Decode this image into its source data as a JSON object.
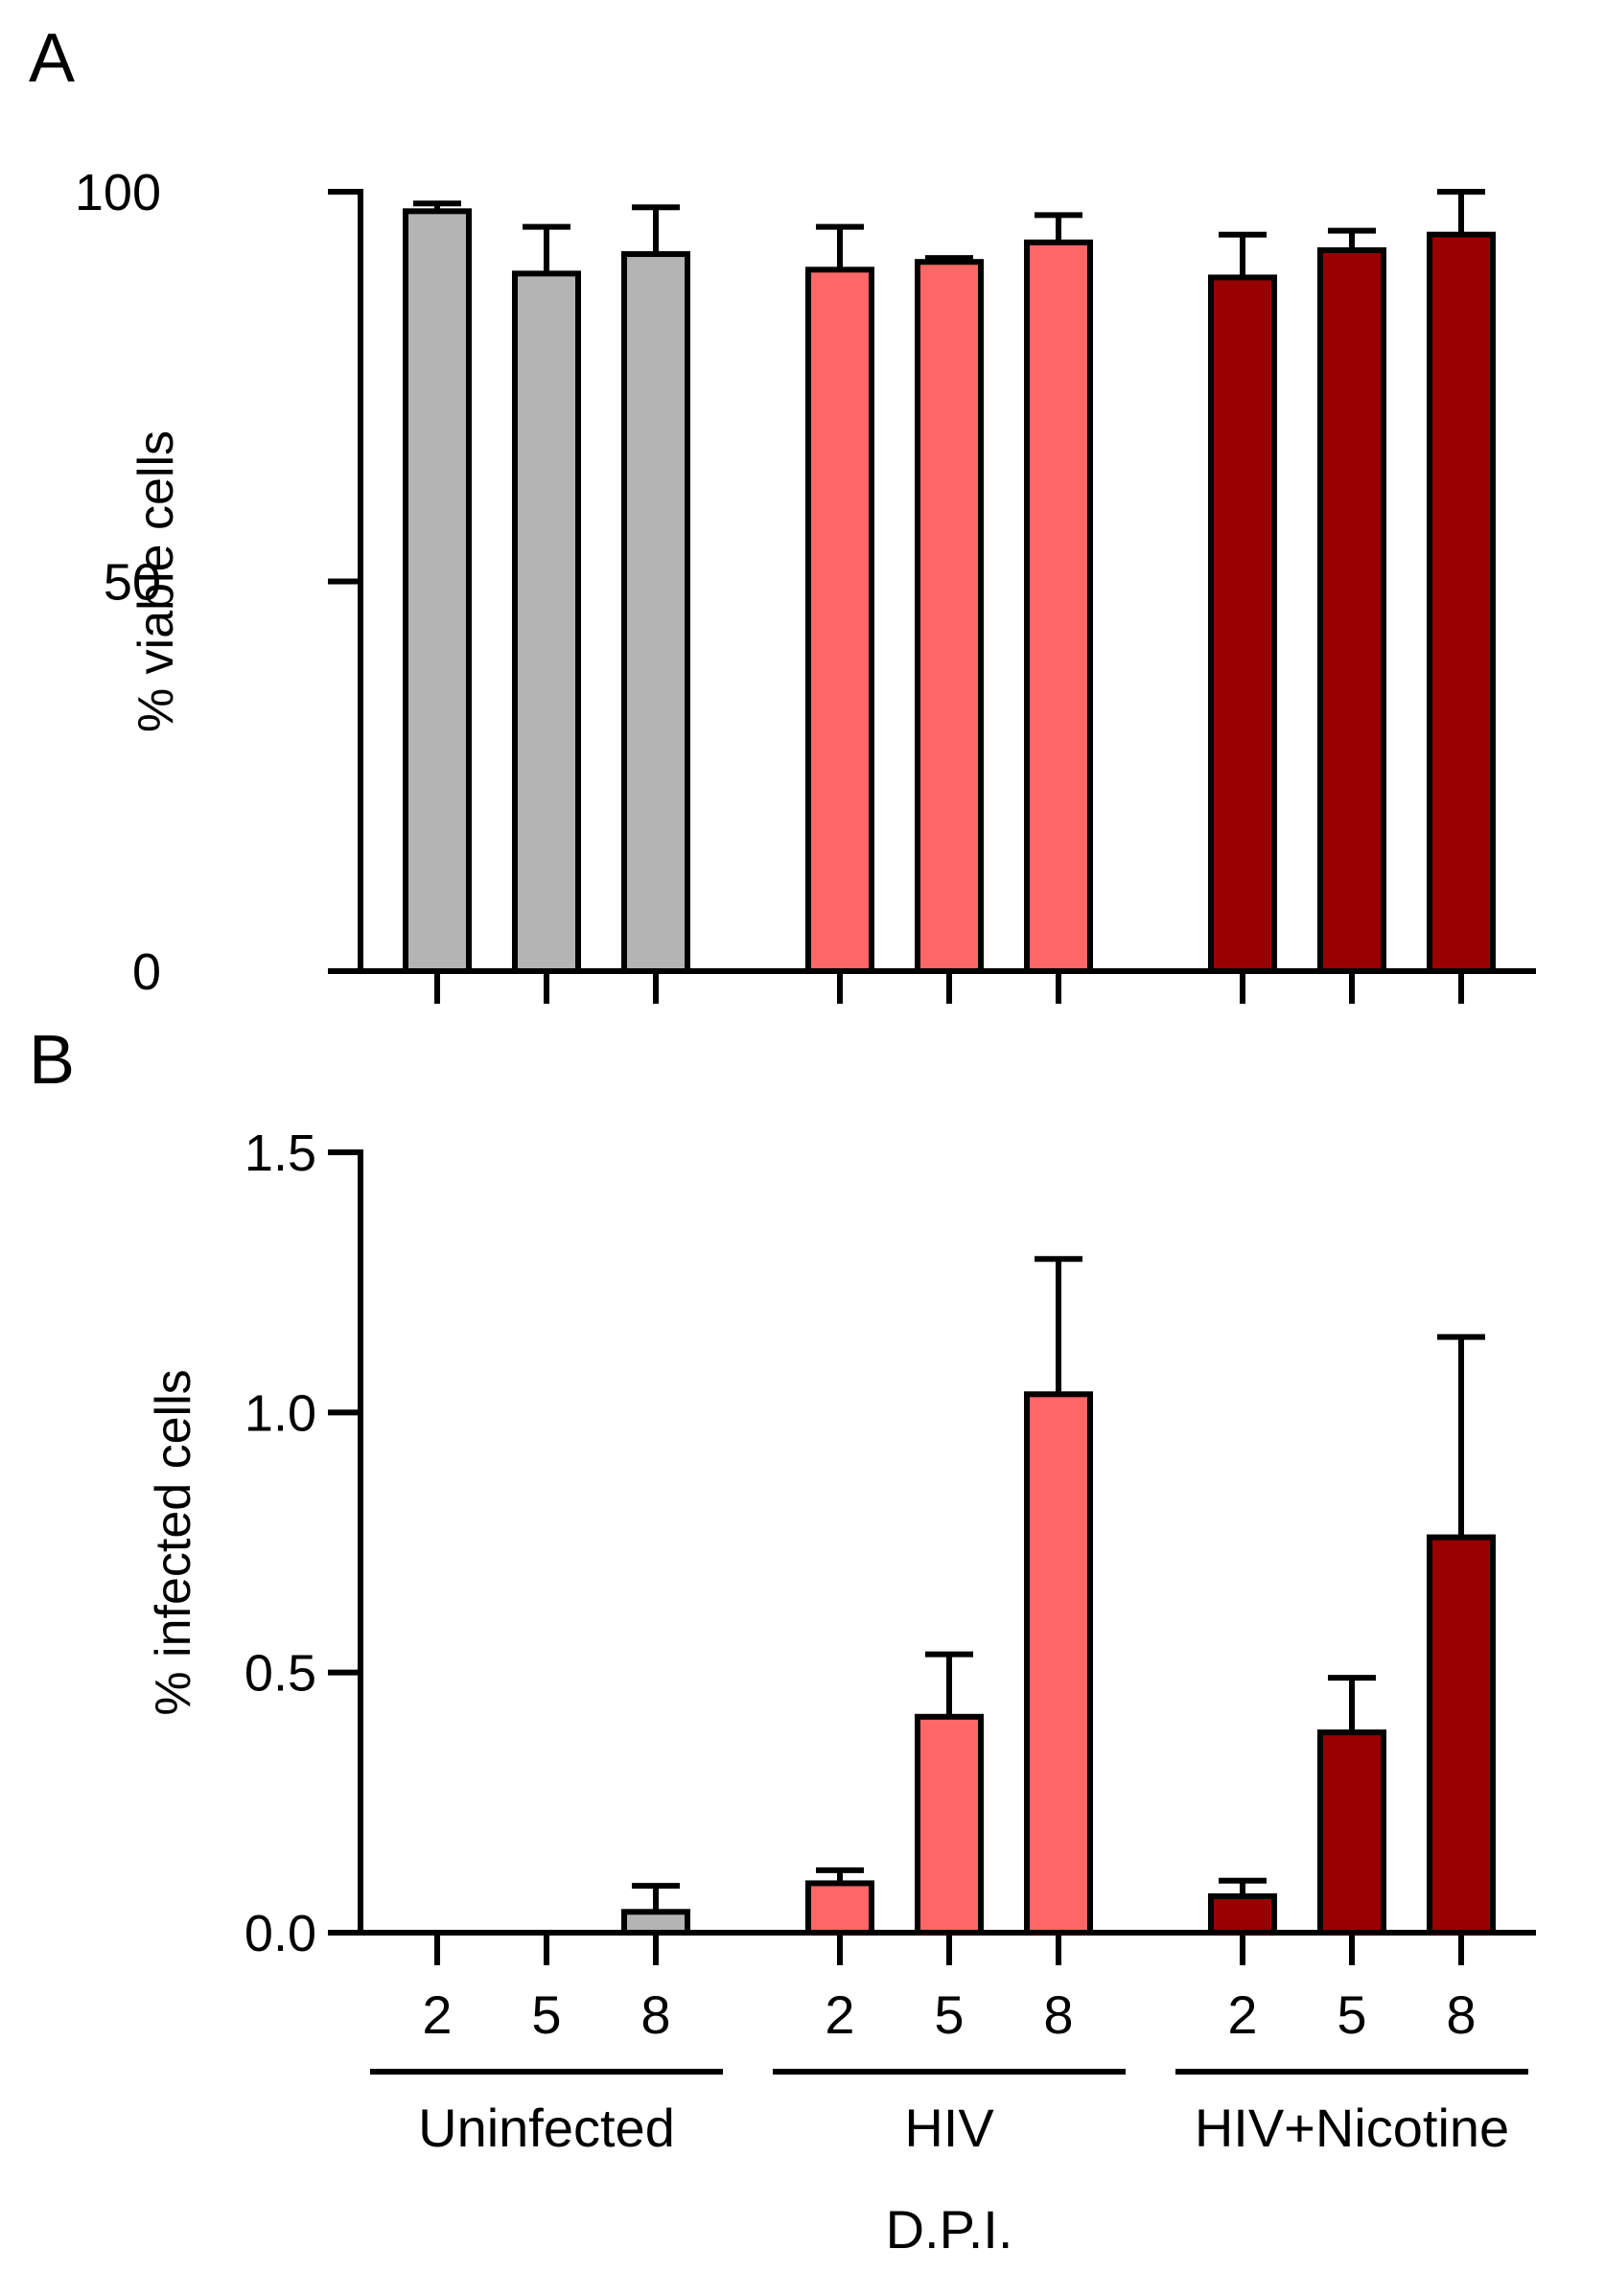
{
  "chart_data": [
    {
      "panel": "A",
      "type": "bar",
      "ylabel": "% viable cells",
      "ylim": [
        0,
        100
      ],
      "yticks": [
        0,
        50,
        100
      ],
      "groups": [
        {
          "name": "Uninfected",
          "color": "#b4b4b4",
          "bars": [
            {
              "dpi": "2",
              "value": 97.5,
              "error": 1.0
            },
            {
              "dpi": "5",
              "value": 89.5,
              "error": 6.0
            },
            {
              "dpi": "8",
              "value": 92.0,
              "error": 6.0
            }
          ]
        },
        {
          "name": "HIV",
          "color": "#ff6666",
          "bars": [
            {
              "dpi": "2",
              "value": 90.0,
              "error": 5.5
            },
            {
              "dpi": "5",
              "value": 91.0,
              "error": 0.5
            },
            {
              "dpi": "8",
              "value": 93.5,
              "error": 3.5
            }
          ]
        },
        {
          "name": "HIV+Nicotine",
          "color": "#990000",
          "bars": [
            {
              "dpi": "2",
              "value": 89.0,
              "error": 5.5
            },
            {
              "dpi": "5",
              "value": 92.5,
              "error": 2.5
            },
            {
              "dpi": "8",
              "value": 94.5,
              "error": 5.5
            }
          ]
        }
      ]
    },
    {
      "panel": "B",
      "type": "bar",
      "ylabel": "% infected cells",
      "xlabel": "D.P.I.",
      "ylim": [
        0,
        1.5
      ],
      "yticks": [
        "0.0",
        "0.5",
        "1.0",
        "1.5"
      ],
      "groups": [
        {
          "name": "Uninfected",
          "color": "#b4b4b4",
          "bars": [
            {
              "dpi": "2",
              "value": 0.0,
              "error": 0.0
            },
            {
              "dpi": "5",
              "value": 0.0,
              "error": 0.0
            },
            {
              "dpi": "8",
              "value": 0.04,
              "error": 0.05
            }
          ]
        },
        {
          "name": "HIV",
          "color": "#ff6666",
          "bars": [
            {
              "dpi": "2",
              "value": 0.095,
              "error": 0.025
            },
            {
              "dpi": "5",
              "value": 0.415,
              "error": 0.12
            },
            {
              "dpi": "8",
              "value": 1.035,
              "error": 0.26
            }
          ]
        },
        {
          "name": "HIV+Nicotine",
          "color": "#990000",
          "bars": [
            {
              "dpi": "2",
              "value": 0.07,
              "error": 0.03
            },
            {
              "dpi": "5",
              "value": 0.385,
              "error": 0.105
            },
            {
              "dpi": "8",
              "value": 0.76,
              "error": 0.385
            }
          ]
        }
      ]
    }
  ]
}
